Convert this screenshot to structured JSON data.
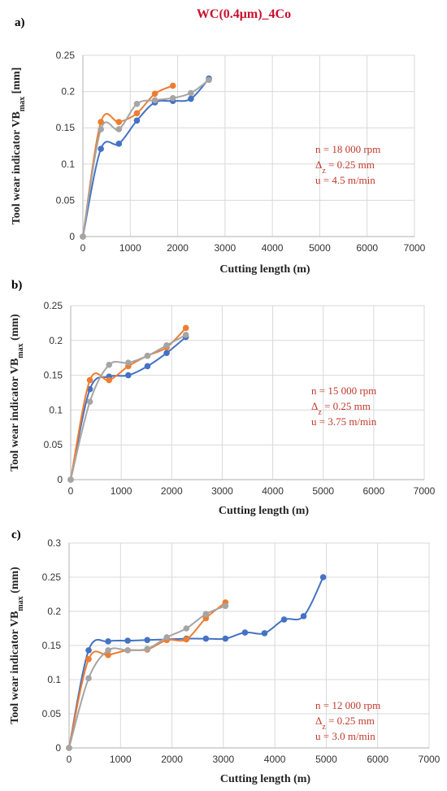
{
  "title": "WC(0.4μm)_4Co",
  "colors": {
    "title": "#c8102e",
    "annotation": "#c0392b",
    "grid": "#d9d9d9",
    "axis": "#bfbfbf",
    "series": [
      "#4472c4",
      "#ed7d31",
      "#a5a5a5"
    ]
  },
  "chart_data": [
    {
      "panel": "a)",
      "type": "line",
      "xlabel": "Cutting length (m)",
      "ylabel": "Tool wear indicator VB",
      "ylabel_sub": "max",
      "ylabel_unit": "[mm]",
      "xlim": [
        0,
        7000
      ],
      "ylim": [
        0,
        0.25
      ],
      "xticks": [
        0,
        1000,
        2000,
        3000,
        4000,
        5000,
        6000,
        7000
      ],
      "yticks": [
        0,
        0.05,
        0.1,
        0.15,
        0.2,
        0.25
      ],
      "annotation": [
        "n = 18 000 rpm",
        "Δz = 0.25 mm",
        "u = 4.5 m/min"
      ],
      "series": [
        {
          "x": [
            0,
            380,
            760,
            1140,
            1520,
            1900,
            2280,
            2660
          ],
          "y": [
            0,
            0.121,
            0.128,
            0.16,
            0.185,
            0.187,
            0.19,
            0.218
          ]
        },
        {
          "x": [
            0,
            380,
            760,
            1140,
            1520,
            1900
          ],
          "y": [
            0,
            0.158,
            0.158,
            0.17,
            0.197,
            0.208
          ]
        },
        {
          "x": [
            0,
            380,
            760,
            1140,
            1520,
            1900,
            2280,
            2660
          ],
          "y": [
            0,
            0.148,
            0.148,
            0.183,
            0.188,
            0.191,
            0.198,
            0.216
          ]
        }
      ]
    },
    {
      "panel": "b)",
      "type": "line",
      "xlabel": "Cutting length (m)",
      "ylabel": "Tool wear indicator VB",
      "ylabel_sub": "max",
      "ylabel_unit": "(mm)",
      "xlim": [
        0,
        7000
      ],
      "ylim": [
        0,
        0.25
      ],
      "xticks": [
        0,
        1000,
        2000,
        3000,
        4000,
        5000,
        6000,
        7000
      ],
      "yticks": [
        0,
        0.05,
        0.1,
        0.15,
        0.2,
        0.25
      ],
      "annotation": [
        "n = 15 000 rpm",
        "Δz = 0.25 mm",
        "u = 3.75 m/min"
      ],
      "series": [
        {
          "x": [
            0,
            380,
            760,
            1140,
            1520,
            1900,
            2280
          ],
          "y": [
            0,
            0.13,
            0.148,
            0.15,
            0.163,
            0.182,
            0.205
          ]
        },
        {
          "x": [
            0,
            380,
            760,
            1140,
            1520,
            1900,
            2280
          ],
          "y": [
            0,
            0.143,
            0.143,
            0.163,
            0.178,
            0.19,
            0.218
          ]
        },
        {
          "x": [
            0,
            380,
            760,
            1140,
            1520,
            1900,
            2280
          ],
          "y": [
            0,
            0.112,
            0.165,
            0.168,
            0.178,
            0.193,
            0.208
          ]
        }
      ]
    },
    {
      "panel": "c)",
      "type": "line",
      "xlabel": "Cutting length (m)",
      "ylabel": "Tool wear indicator VB",
      "ylabel_sub": "max",
      "ylabel_unit": "(mm)",
      "xlim": [
        0,
        7000
      ],
      "ylim": [
        0,
        0.3
      ],
      "xticks": [
        0,
        1000,
        2000,
        3000,
        4000,
        5000,
        6000,
        7000
      ],
      "yticks": [
        0,
        0.05,
        0.1,
        0.15,
        0.2,
        0.25,
        0.3
      ],
      "annotation": [
        "n = 12 000 rpm",
        "Δz = 0.25 mm",
        "u = 3.0 m/min"
      ],
      "series": [
        {
          "x": [
            0,
            380,
            760,
            1140,
            1520,
            1900,
            2280,
            2660,
            3040,
            3420,
            3800,
            4180,
            4560,
            4940
          ],
          "y": [
            0,
            0.143,
            0.156,
            0.157,
            0.158,
            0.159,
            0.16,
            0.16,
            0.16,
            0.169,
            0.168,
            0.188,
            0.193,
            0.25
          ]
        },
        {
          "x": [
            0,
            380,
            760,
            1140,
            1520,
            1900,
            2280,
            2660,
            3040
          ],
          "y": [
            0,
            0.13,
            0.136,
            0.143,
            0.144,
            0.158,
            0.159,
            0.19,
            0.213
          ]
        },
        {
          "x": [
            0,
            380,
            760,
            1140,
            1520,
            1900,
            2280,
            2660,
            3040
          ],
          "y": [
            0,
            0.102,
            0.143,
            0.143,
            0.145,
            0.162,
            0.175,
            0.196,
            0.208
          ]
        }
      ]
    }
  ]
}
